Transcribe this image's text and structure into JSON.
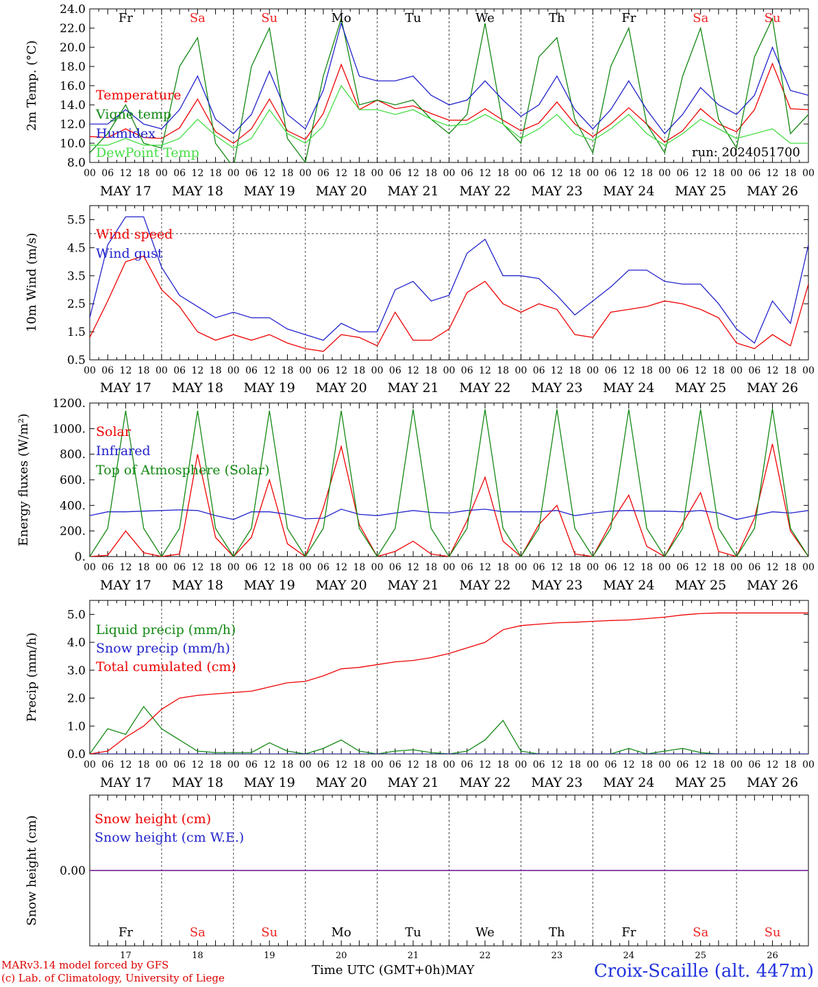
{
  "days": {
    "labels": [
      "Fr",
      "Sa",
      "Su",
      "Mo",
      "Tu",
      "We",
      "Th",
      "Fr",
      "Sa",
      "Su"
    ],
    "weekend_flags": [
      false,
      true,
      true,
      false,
      false,
      false,
      false,
      false,
      true,
      true
    ],
    "weekday_color": "#000000",
    "weekend_color": "#ee2222",
    "dates": [
      "MAY 17",
      "MAY 18",
      "MAY 19",
      "MAY 20",
      "MAY 21",
      "MAY 22",
      "MAY 23",
      "MAY 24",
      "MAY 25",
      "MAY 26"
    ],
    "day_numbers": [
      "17",
      "18",
      "19",
      "20",
      "21",
      "22",
      "23",
      "24",
      "25",
      "26"
    ],
    "hour_ticks": [
      "00",
      "06",
      "12",
      "18"
    ],
    "end_tick": "00"
  },
  "footer": {
    "model_line1": "MARv3.14 model forced by GFS",
    "model_line2": "(c) Lab. of Climatology, University of Liege",
    "time_axis": "Time UTC (GMT+0h)",
    "month": "MAY",
    "station": "Croix-Scaille (alt. 447m)"
  },
  "chart_data": [
    {
      "type": "line",
      "ylabel": "2m Temp. (°C)",
      "ylim": [
        8,
        24
      ],
      "yticks": [
        "8.0",
        "10.0",
        "12.0",
        "14.0",
        "16.0",
        "18.0",
        "20.0",
        "22.0",
        "24.0"
      ],
      "annotation": "run: 2024051700",
      "x": "hours from 17 May 00 UTC, 6-hourly (0 to 240)",
      "series": [
        {
          "name": "Temperature",
          "color": "#ee0000",
          "values": [
            10.7,
            10.6,
            11.5,
            10.6,
            10.5,
            11.6,
            14.6,
            11.2,
            10.0,
            11.5,
            14.6,
            11.3,
            10.4,
            13.1,
            18.2,
            13.5,
            14.5,
            13.6,
            13.9,
            13.1,
            12.4,
            12.4,
            13.6,
            12.4,
            11.3,
            12.1,
            14.3,
            12.0,
            10.7,
            12.0,
            13.7,
            12.0,
            10.1,
            11.3,
            13.6,
            12.0,
            11.2,
            13.5,
            18.3,
            13.6,
            13.5
          ]
        },
        {
          "name": "Vigne temp",
          "color": "#118811",
          "values": [
            9.0,
            11.0,
            14.0,
            10.0,
            9.5,
            18.0,
            21.0,
            10.0,
            7.5,
            18.0,
            22.0,
            10.5,
            8.0,
            17.0,
            23.0,
            14.0,
            14.5,
            14.0,
            14.5,
            12.5,
            11.0,
            13.0,
            22.5,
            12.0,
            10.0,
            19.0,
            21.0,
            12.5,
            9.0,
            18.0,
            22.0,
            12.0,
            9.0,
            17.0,
            22.0,
            12.5,
            9.5,
            19.0,
            23.0,
            11.0,
            13.0
          ]
        },
        {
          "name": "Humidex",
          "color": "#2222cc",
          "values": [
            12.0,
            12.0,
            13.5,
            12.0,
            11.5,
            13.5,
            17.0,
            12.5,
            11.0,
            13.0,
            17.5,
            13.0,
            11.5,
            15.5,
            22.5,
            17.0,
            16.5,
            16.5,
            17.0,
            15.0,
            14.0,
            14.5,
            16.5,
            14.5,
            12.8,
            14.0,
            17.0,
            13.5,
            11.5,
            13.5,
            16.5,
            13.5,
            11.0,
            13.0,
            15.8,
            14.0,
            13.0,
            15.0,
            20.0,
            15.5,
            15.0
          ]
        },
        {
          "name": "DewPoint Temp",
          "color": "#44dd44",
          "values": [
            9.8,
            9.8,
            10.5,
            9.8,
            9.8,
            10.5,
            12.5,
            10.8,
            9.5,
            10.5,
            13.5,
            11.0,
            10.0,
            11.8,
            16.0,
            13.5,
            13.5,
            13.0,
            13.5,
            12.5,
            11.8,
            12.0,
            13.0,
            12.0,
            10.5,
            11.5,
            13.0,
            11.0,
            10.3,
            11.5,
            13.0,
            11.0,
            9.8,
            11.0,
            12.5,
            11.5,
            10.5,
            11.0,
            11.5,
            10.0,
            10.0
          ]
        }
      ]
    },
    {
      "type": "line",
      "ylabel": "10m Wind (m/s)",
      "ylim": [
        0.5,
        6.0
      ],
      "yticks": [
        "0.5",
        "1.5",
        "2.5",
        "3.5",
        "4.5",
        "5.5"
      ],
      "reference_line": 5.0,
      "series": [
        {
          "name": "Wind speed",
          "color": "#ee0000",
          "values": [
            1.3,
            2.6,
            4.0,
            4.2,
            3.0,
            2.4,
            1.5,
            1.2,
            1.4,
            1.2,
            1.4,
            1.1,
            0.9,
            0.8,
            1.4,
            1.3,
            1.0,
            2.2,
            1.2,
            1.2,
            1.6,
            2.9,
            3.3,
            2.5,
            2.2,
            2.5,
            2.3,
            1.4,
            1.3,
            2.2,
            2.3,
            2.4,
            2.6,
            2.5,
            2.3,
            2.0,
            1.1,
            0.9,
            1.4,
            1.0,
            3.2
          ]
        },
        {
          "name": "Wind gust",
          "color": "#2222cc",
          "values": [
            2.0,
            4.6,
            5.6,
            5.6,
            3.8,
            2.8,
            2.4,
            2.0,
            2.2,
            2.0,
            2.0,
            1.6,
            1.4,
            1.2,
            1.8,
            1.5,
            1.5,
            3.0,
            3.3,
            2.6,
            2.8,
            4.3,
            4.8,
            3.5,
            3.5,
            3.4,
            2.8,
            2.1,
            2.6,
            3.1,
            3.7,
            3.7,
            3.3,
            3.2,
            3.2,
            2.5,
            1.6,
            1.1,
            2.6,
            1.8,
            4.6
          ]
        }
      ]
    },
    {
      "type": "line",
      "ylabel": "Energy fluxes (W/m²)",
      "ylim": [
        0,
        1200
      ],
      "yticks": [
        "0.",
        "200.",
        "400.",
        "600.",
        "800.",
        "1000.",
        "1200."
      ],
      "series": [
        {
          "name": "Solar",
          "color": "#ee0000",
          "values": [
            0,
            10,
            200,
            30,
            0,
            20,
            800,
            150,
            0,
            150,
            600,
            100,
            0,
            380,
            860,
            250,
            0,
            40,
            120,
            20,
            0,
            280,
            620,
            120,
            0,
            250,
            400,
            20,
            0,
            260,
            480,
            80,
            0,
            260,
            500,
            40,
            0,
            300,
            880,
            200,
            0
          ]
        },
        {
          "name": "Infrared",
          "color": "#2222cc",
          "values": [
            320,
            350,
            350,
            355,
            360,
            365,
            360,
            320,
            290,
            350,
            350,
            330,
            295,
            300,
            370,
            330,
            320,
            340,
            360,
            345,
            340,
            360,
            370,
            350,
            350,
            350,
            360,
            320,
            340,
            355,
            360,
            355,
            355,
            350,
            360,
            340,
            290,
            320,
            350,
            340,
            360
          ]
        },
        {
          "name": "Top of Atmosphere (Solar)",
          "color": "#118811",
          "values": [
            0,
            220,
            1140,
            220,
            0,
            220,
            1140,
            220,
            0,
            220,
            1140,
            220,
            0,
            220,
            1140,
            220,
            0,
            220,
            1150,
            220,
            0,
            220,
            1150,
            220,
            0,
            220,
            1150,
            220,
            0,
            220,
            1150,
            220,
            0,
            220,
            1150,
            220,
            0,
            220,
            1155,
            220,
            0
          ]
        }
      ]
    },
    {
      "type": "line",
      "ylabel": "Precip (mm/h)",
      "ylim": [
        0,
        5.5
      ],
      "yticks": [
        "0.0",
        "1.0",
        "2.0",
        "3.0",
        "4.0",
        "5.0"
      ],
      "series": [
        {
          "name": "Liquid precip (mm/h)",
          "color": "#118811",
          "values": [
            0,
            0.9,
            0.7,
            1.7,
            0.9,
            0.5,
            0.1,
            0.05,
            0.05,
            0.05,
            0.4,
            0.1,
            0,
            0.2,
            0.5,
            0.1,
            0,
            0.1,
            0.15,
            0.05,
            0,
            0.1,
            0.5,
            1.2,
            0.1,
            0,
            0,
            0,
            0,
            0,
            0.2,
            0,
            0.1,
            0.2,
            0.05,
            0,
            0,
            0,
            0,
            0,
            0
          ]
        },
        {
          "name": "Snow precip (mm/h)",
          "color": "#2222cc",
          "values": [
            0,
            0,
            0,
            0,
            0,
            0,
            0,
            0,
            0,
            0,
            0,
            0,
            0,
            0,
            0,
            0,
            0,
            0,
            0,
            0,
            0,
            0,
            0,
            0,
            0,
            0,
            0,
            0,
            0,
            0,
            0,
            0,
            0,
            0,
            0,
            0,
            0,
            0,
            0,
            0,
            0
          ]
        },
        {
          "name": "Total cumulated (cm)",
          "color": "#ee0000",
          "values": [
            0,
            0.1,
            0.6,
            1.0,
            1.6,
            2.0,
            2.1,
            2.15,
            2.2,
            2.25,
            2.4,
            2.55,
            2.6,
            2.8,
            3.05,
            3.1,
            3.2,
            3.3,
            3.35,
            3.45,
            3.6,
            3.8,
            4.0,
            4.45,
            4.6,
            4.65,
            4.7,
            4.72,
            4.75,
            4.78,
            4.8,
            4.85,
            4.9,
            4.98,
            5.03,
            5.05,
            5.05,
            5.05,
            5.05,
            5.05,
            5.05
          ]
        }
      ]
    },
    {
      "type": "line",
      "ylabel": "Snow height (cm)",
      "ylim": [
        -1,
        1
      ],
      "yticks": [
        "0.00"
      ],
      "series": [
        {
          "name": "Snow height (cm)",
          "color": "#ee0000",
          "values": [
            0,
            0,
            0,
            0,
            0,
            0,
            0,
            0,
            0,
            0,
            0,
            0,
            0,
            0,
            0,
            0,
            0,
            0,
            0,
            0,
            0,
            0,
            0,
            0,
            0,
            0,
            0,
            0,
            0,
            0,
            0,
            0,
            0,
            0,
            0,
            0,
            0,
            0,
            0,
            0,
            0
          ]
        },
        {
          "name": "Snow height (cm W.E.)",
          "color": "#2222cc",
          "values": [
            0,
            0,
            0,
            0,
            0,
            0,
            0,
            0,
            0,
            0,
            0,
            0,
            0,
            0,
            0,
            0,
            0,
            0,
            0,
            0,
            0,
            0,
            0,
            0,
            0,
            0,
            0,
            0,
            0,
            0,
            0,
            0,
            0,
            0,
            0,
            0,
            0,
            0,
            0,
            0,
            0
          ]
        }
      ]
    }
  ]
}
